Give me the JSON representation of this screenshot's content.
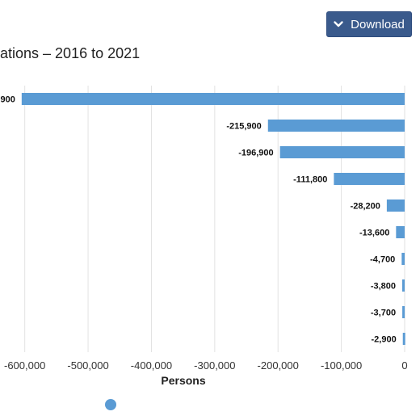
{
  "header": {
    "title": "ations – 2016 to 2021",
    "download_label": "Download"
  },
  "colors": {
    "bar": "#5a9bd4",
    "grid": "#e2e2e2",
    "button": "#3a5a8c"
  },
  "legend": {
    "marker": "circle",
    "color": "#5a9bd4"
  },
  "chart_data": {
    "type": "bar",
    "orientation": "horizontal",
    "xlabel": "Persons",
    "xlim": [
      -620000,
      0
    ],
    "x_ticks": [
      -600000,
      -500000,
      -400000,
      -300000,
      -200000,
      -100000,
      0
    ],
    "x_tick_labels": [
      "-600,000",
      "-500,000",
      "-400,000",
      "-300,000",
      "-200,000",
      "-100,000",
      "0"
    ],
    "grid": true,
    "values": [
      -604900,
      -215900,
      -196900,
      -111800,
      -28200,
      -13600,
      -4700,
      -3800,
      -3700,
      -2900
    ],
    "labels": [
      ",900",
      "-215,900",
      "-196,900",
      "-111,800",
      "-28,200",
      "-13,600",
      "-4,700",
      "-3,800",
      "-3,700",
      "-2,900"
    ]
  }
}
